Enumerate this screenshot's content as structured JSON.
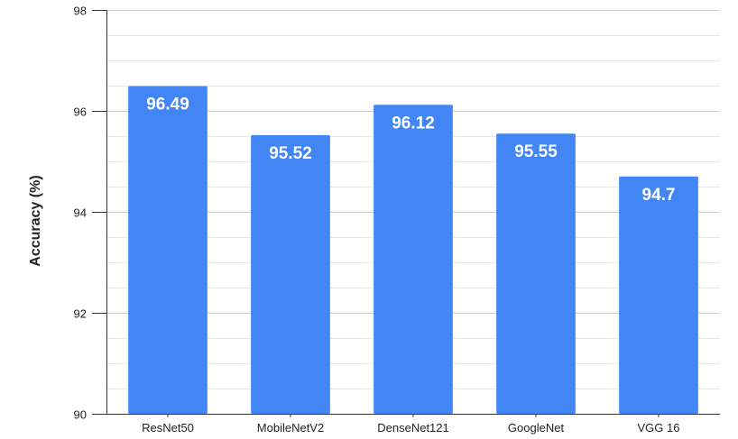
{
  "chart_data": {
    "type": "bar",
    "title": "",
    "xlabel": "",
    "ylabel": "Accuracy (%)",
    "categories": [
      "ResNet50",
      "MobileNetV2",
      "DenseNet121",
      "GoogleNet",
      "VGG 16"
    ],
    "values": [
      96.49,
      95.52,
      96.12,
      95.55,
      94.7
    ],
    "data_labels": [
      "96.49",
      "95.52",
      "96.12",
      "95.55",
      "94.7"
    ],
    "ylim": [
      90,
      98
    ],
    "yticks": [
      "90",
      "92",
      "94",
      "96",
      "98"
    ],
    "grid": true,
    "legend": "none",
    "bar_color": "#4285f4"
  }
}
